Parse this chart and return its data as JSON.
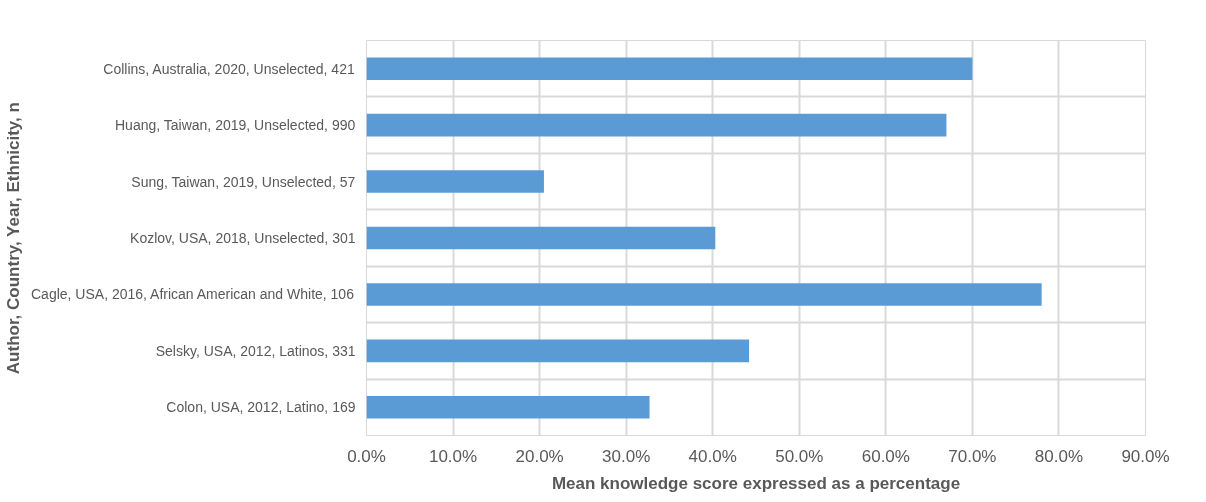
{
  "chart_data": {
    "type": "bar",
    "orientation": "horizontal",
    "xlabel": "Mean knowledge score expressed as a percentage",
    "ylabel": "Author, Country, Year, Ethnicity, n",
    "categories": [
      "Collins, Australia, 2020, Unselected, 421",
      "Huang, Taiwan, 2019, Unselected, 990",
      "Sung, Taiwan, 2019, Unselected, 57",
      "Kozlov, USA, 2018, Unselected, 301",
      "Cagle, USA, 2016, African American and White, 106",
      "Selsky, USA, 2012, Latinos, 331",
      "Colon, USA, 2012, Latino, 169"
    ],
    "values": [
      70,
      67,
      20.5,
      40.3,
      78,
      44.2,
      32.7
    ],
    "color": "#5b9bd5",
    "xlim": [
      0,
      90
    ],
    "xticks": [
      {
        "value": 0,
        "label": "0.0%"
      },
      {
        "value": 10,
        "label": "10.0%"
      },
      {
        "value": 20,
        "label": "20.0%"
      },
      {
        "value": 30,
        "label": "30.0%"
      },
      {
        "value": 40,
        "label": "40.0%"
      },
      {
        "value": 50,
        "label": "50.0%"
      },
      {
        "value": 60,
        "label": "60.0%"
      },
      {
        "value": 70,
        "label": "70.0%"
      },
      {
        "value": 80,
        "label": "80.0%"
      },
      {
        "value": 90,
        "label": "90.0%"
      }
    ],
    "grid": true
  }
}
